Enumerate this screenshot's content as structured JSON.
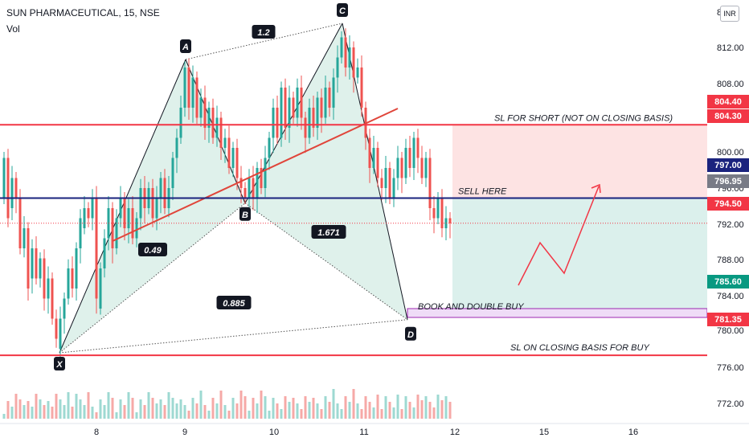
{
  "header": {
    "symbol": "SUN PHARMACEUTICAL, 15, NSE",
    "volume_label": "Vol",
    "currency": "INR",
    "price_axis_top_partial": "8"
  },
  "chart_data": {
    "type": "candlestick",
    "y_ticks": [
      812.0,
      808.0,
      804.0,
      800.0,
      796.0,
      792.0,
      788.0,
      784.0,
      780.0,
      776.0,
      772.0
    ],
    "y_tick_labels": [
      "812.00",
      "808.00",
      "804.00",
      "800.00",
      "796.00",
      "792.00",
      "788.00",
      "784.00",
      "780.00",
      "776.00",
      "772.00"
    ],
    "x_tick_labels": [
      "8",
      "9",
      "10",
      "11",
      "12",
      "15",
      "16"
    ],
    "price_badges": [
      {
        "label": "804.40",
        "color": "#f23645"
      },
      {
        "label": "804.30",
        "color": "#f23645"
      },
      {
        "label": "797.00",
        "color": "#1a237e"
      },
      {
        "label": "796.95",
        "color": "#787b86"
      },
      {
        "label": "794.50",
        "color": "#f23645"
      },
      {
        "label": "785.60",
        "color": "#089981"
      },
      {
        "label": "781.35",
        "color": "#f23645"
      }
    ],
    "pattern_points": [
      {
        "label": "X",
        "price": 781.6
      },
      {
        "label": "A",
        "price": 810.8
      },
      {
        "label": "B",
        "price": 796.5
      },
      {
        "label": "C",
        "price": 814.4
      },
      {
        "label": "D",
        "price": 784.9
      }
    ],
    "ratios": [
      {
        "label": "1.2",
        "value": 1.2
      },
      {
        "label": "0.49",
        "value": 0.49
      },
      {
        "label": "1.671",
        "value": 1.671
      },
      {
        "label": "0.885",
        "value": 0.885
      }
    ],
    "levels": [
      {
        "price": 804.3,
        "text": "SL FOR SHORT (NOT ON CLOSING BASIS)",
        "color": "#f23645"
      },
      {
        "price": 797.0,
        "text": "SELL HERE",
        "color": "#1a237e"
      },
      {
        "price": 785.6,
        "text": "BOOK AND DOUBLE BUY",
        "color": "#9c27b0"
      },
      {
        "price": 781.35,
        "text": "SL ON CLOSING BASIS FOR BUY",
        "color": "#f23645"
      }
    ],
    "position": {
      "entry": 797.0,
      "stop": 804.3,
      "target": 785.6
    },
    "dotted_price_line": 794.5,
    "colors": {
      "up": "#26a69a",
      "down": "#ef5350",
      "vol_up": "#9ed9d2",
      "vol_down": "#f6a9a7",
      "pattern_fill": "#d9efe8",
      "stop_zone": "#fde3e3",
      "target_zone": "#dbf0ec"
    }
  }
}
